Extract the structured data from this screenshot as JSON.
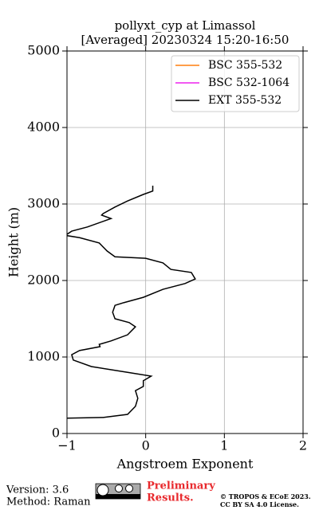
{
  "chart_data": {
    "type": "line",
    "title": [
      "pollyxt_cyp at Limassol",
      "[Averaged] 20230324 15:20-16:50"
    ],
    "x_label": "Angstroem Exponent",
    "y_label": "Height (m)",
    "xlim": [
      -1,
      2
    ],
    "xticks": [
      {
        "value": -1,
        "label": "−1"
      },
      0,
      1,
      2
    ],
    "ylim": [
      0,
      5000
    ],
    "yticks": [
      0,
      1000,
      2000,
      3000,
      4000,
      5000
    ],
    "grid": true,
    "legend": "upper right",
    "y": [
      3240,
      3170,
      3125,
      3040,
      2960,
      2875,
      2855,
      2810,
      2700,
      2645,
      2590,
      2560,
      2490,
      2385,
      2310,
      2290,
      2230,
      2145,
      2105,
      2020,
      1960,
      1885,
      1780,
      1710,
      1675,
      1585,
      1500,
      1450,
      1395,
      1290,
      1210,
      1165,
      1135,
      1085,
      1030,
      960,
      875,
      800,
      750,
      690,
      615,
      560,
      460,
      355,
      250,
      210,
      200
    ],
    "series": [
      {
        "name": "BSC 355-532",
        "color": "#ff7f0e",
        "values": [
          null,
          null,
          null,
          null,
          null,
          null,
          null,
          null,
          null,
          null,
          null,
          null,
          null,
          null,
          null,
          null,
          null,
          null,
          null,
          null,
          null,
          null,
          null,
          null,
          null,
          null,
          null,
          null,
          null,
          null,
          null,
          null,
          null,
          null,
          null,
          null,
          null,
          null,
          null,
          null,
          null,
          null,
          null,
          null,
          null,
          null,
          null
        ]
      },
      {
        "name": "BSC 532-1064",
        "color": "#ee22ee",
        "values": [
          null,
          null,
          null,
          null,
          null,
          null,
          null,
          null,
          null,
          null,
          null,
          null,
          null,
          null,
          null,
          null,
          null,
          null,
          null,
          null,
          null,
          null,
          null,
          null,
          null,
          null,
          null,
          null,
          null,
          null,
          null,
          null,
          null,
          null,
          null,
          null,
          null,
          null,
          null,
          null,
          null,
          null,
          null,
          null,
          null,
          null,
          null
        ]
      },
      {
        "name": "EXT 355-532",
        "color": "#000000",
        "values": [
          0.09,
          0.09,
          -0.03,
          -0.23,
          -0.39,
          -0.54,
          -0.56,
          -0.44,
          -0.74,
          -0.94,
          -1.02,
          -0.84,
          -0.59,
          -0.49,
          -0.39,
          0.0,
          0.22,
          0.32,
          0.58,
          0.63,
          0.5,
          0.22,
          -0.03,
          -0.28,
          -0.39,
          -0.42,
          -0.39,
          -0.21,
          -0.13,
          -0.23,
          -0.44,
          -0.59,
          -0.58,
          -0.84,
          -0.94,
          -0.92,
          -0.69,
          -0.23,
          0.07,
          -0.03,
          -0.03,
          -0.13,
          -0.1,
          -0.13,
          -0.23,
          -0.54,
          -1.0
        ]
      }
    ]
  },
  "footer": {
    "version": "Version: 3.6",
    "method": "Method: Raman",
    "status": [
      "Preliminary",
      "Results."
    ],
    "copyright": [
      "© TROPOS & ECoE 2023.",
      "CC BY SA 4.0 License."
    ]
  }
}
